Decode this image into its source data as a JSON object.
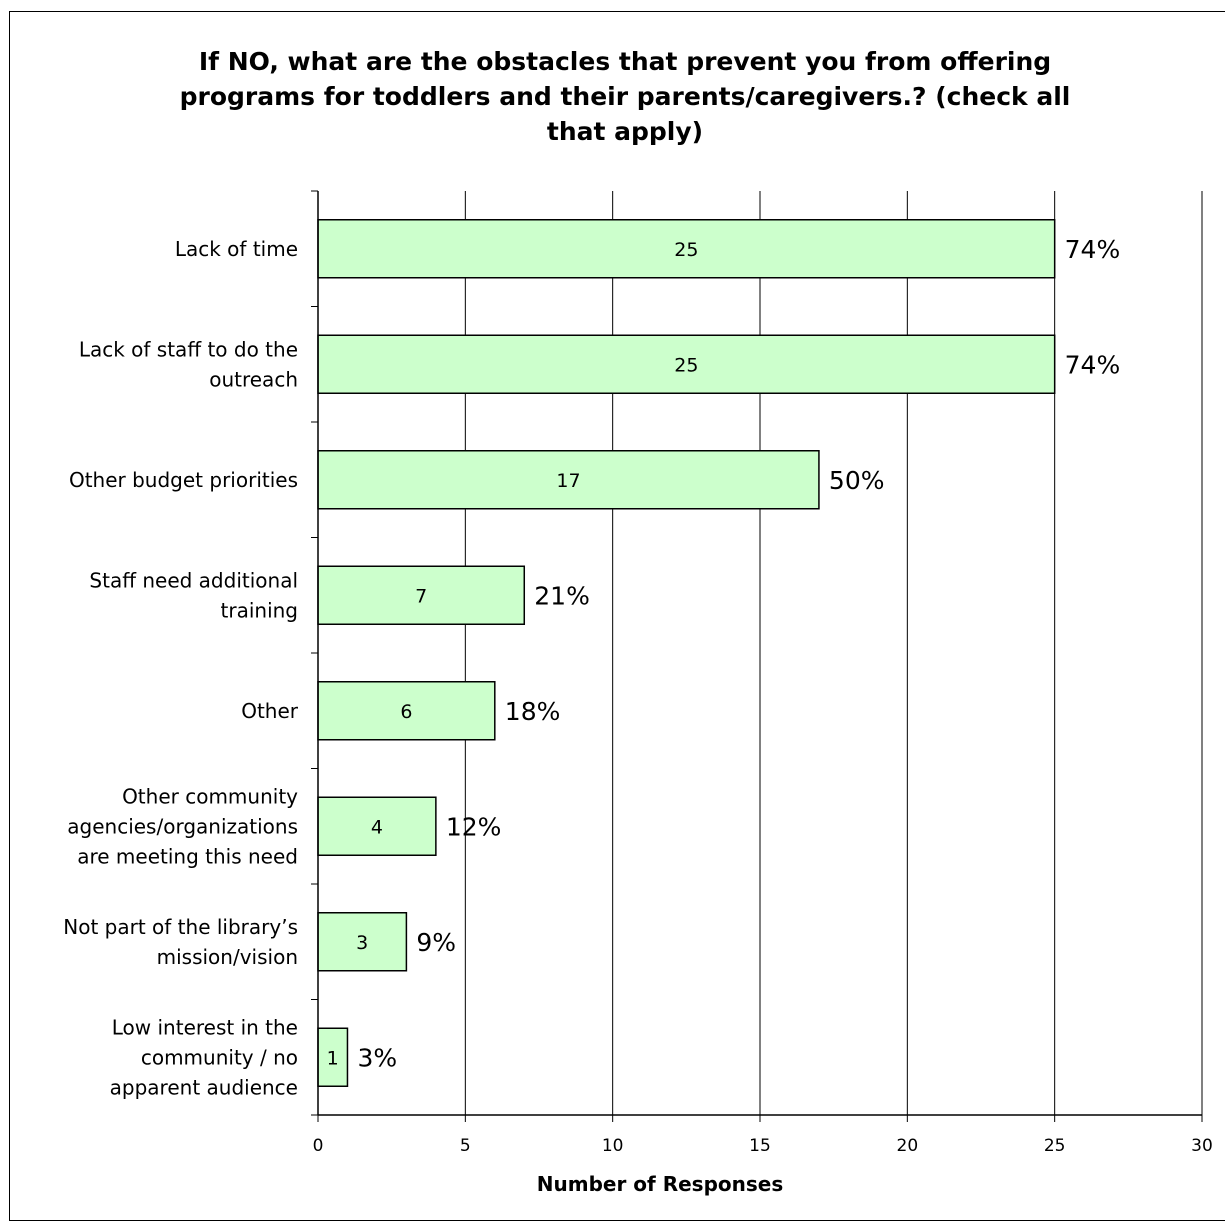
{
  "chart_data": {
    "type": "bar",
    "orientation": "horizontal",
    "title": "If NO, what are the obstacles that prevent you from offering programs for toddlers and their parents/caregivers.? (check all that apply)",
    "xlabel": "Number of Responses",
    "ylabel": "",
    "xlim": [
      0,
      30
    ],
    "xticks": [
      0,
      5,
      10,
      15,
      20,
      25,
      30
    ],
    "grid": "vertical",
    "legend": "none",
    "bar_color": "#ccffcc",
    "categories": [
      [
        "Lack of time"
      ],
      [
        "Lack of staff to do the",
        "outreach"
      ],
      [
        "Other budget priorities"
      ],
      [
        "Staff need additional",
        "training"
      ],
      [
        "Other"
      ],
      [
        "Other community",
        "agencies/organizations",
        "are meeting this need"
      ],
      [
        "Not part of the library’s",
        "mission/vision"
      ],
      [
        "Low interest in the",
        "community / no",
        "apparent audience"
      ]
    ],
    "values": [
      25,
      25,
      17,
      7,
      6,
      4,
      3,
      1
    ],
    "percent_labels": [
      "74%",
      "74%",
      "50%",
      "21%",
      "18%",
      "12%",
      "9%",
      "3%"
    ]
  }
}
